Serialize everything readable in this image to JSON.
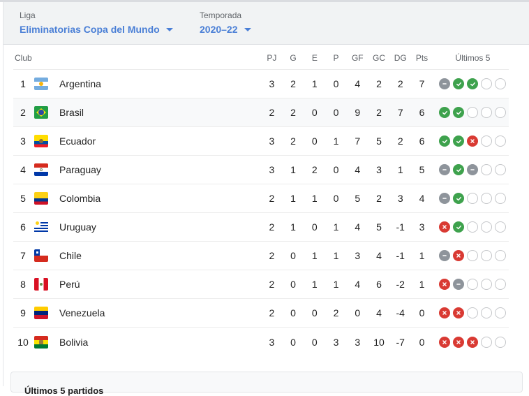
{
  "filters": {
    "league": {
      "label": "Liga",
      "value": "Eliminatorias Copa del Mundo"
    },
    "season": {
      "label": "Temporada",
      "value": "2020–22"
    }
  },
  "table": {
    "headers": {
      "club": "Club",
      "pj": "PJ",
      "g": "G",
      "e": "E",
      "p": "P",
      "gf": "GF",
      "gc": "GC",
      "dg": "DG",
      "pts": "Pts",
      "last5": "Últimos 5"
    },
    "rows": [
      {
        "pos": "1",
        "club": "Argentina",
        "flag": "argentina",
        "pj": "3",
        "g": "2",
        "e": "1",
        "p": "0",
        "gf": "4",
        "gc": "2",
        "dg": "2",
        "pts": "7",
        "last5": [
          "draw",
          "win",
          "win",
          "empty",
          "empty"
        ]
      },
      {
        "pos": "2",
        "club": "Brasil",
        "flag": "brasil",
        "pj": "2",
        "g": "2",
        "e": "0",
        "p": "0",
        "gf": "9",
        "gc": "2",
        "dg": "7",
        "pts": "6",
        "last5": [
          "win",
          "win",
          "empty",
          "empty",
          "empty"
        ]
      },
      {
        "pos": "3",
        "club": "Ecuador",
        "flag": "ecuador",
        "pj": "3",
        "g": "2",
        "e": "0",
        "p": "1",
        "gf": "7",
        "gc": "5",
        "dg": "2",
        "pts": "6",
        "last5": [
          "win",
          "win",
          "loss",
          "empty",
          "empty"
        ]
      },
      {
        "pos": "4",
        "club": "Paraguay",
        "flag": "paraguay",
        "pj": "3",
        "g": "1",
        "e": "2",
        "p": "0",
        "gf": "4",
        "gc": "3",
        "dg": "1",
        "pts": "5",
        "last5": [
          "draw",
          "win",
          "draw",
          "empty",
          "empty"
        ]
      },
      {
        "pos": "5",
        "club": "Colombia",
        "flag": "colombia",
        "pj": "2",
        "g": "1",
        "e": "1",
        "p": "0",
        "gf": "5",
        "gc": "2",
        "dg": "3",
        "pts": "4",
        "last5": [
          "draw",
          "win",
          "empty",
          "empty",
          "empty"
        ]
      },
      {
        "pos": "6",
        "club": "Uruguay",
        "flag": "uruguay",
        "pj": "2",
        "g": "1",
        "e": "0",
        "p": "1",
        "gf": "4",
        "gc": "5",
        "dg": "-1",
        "pts": "3",
        "last5": [
          "loss",
          "win",
          "empty",
          "empty",
          "empty"
        ]
      },
      {
        "pos": "7",
        "club": "Chile",
        "flag": "chile",
        "pj": "2",
        "g": "0",
        "e": "1",
        "p": "1",
        "gf": "3",
        "gc": "4",
        "dg": "-1",
        "pts": "1",
        "last5": [
          "draw",
          "loss",
          "empty",
          "empty",
          "empty"
        ]
      },
      {
        "pos": "8",
        "club": "Perú",
        "flag": "peru",
        "pj": "2",
        "g": "0",
        "e": "1",
        "p": "1",
        "gf": "4",
        "gc": "6",
        "dg": "-2",
        "pts": "1",
        "last5": [
          "loss",
          "draw",
          "empty",
          "empty",
          "empty"
        ]
      },
      {
        "pos": "9",
        "club": "Venezuela",
        "flag": "venezuela",
        "pj": "2",
        "g": "0",
        "e": "0",
        "p": "2",
        "gf": "0",
        "gc": "4",
        "dg": "-4",
        "pts": "0",
        "last5": [
          "loss",
          "loss",
          "empty",
          "empty",
          "empty"
        ]
      },
      {
        "pos": "10",
        "club": "Bolivia",
        "flag": "bolivia",
        "pj": "3",
        "g": "0",
        "e": "0",
        "p": "3",
        "gf": "3",
        "gc": "10",
        "dg": "-7",
        "pts": "0",
        "last5": [
          "loss",
          "loss",
          "loss",
          "empty",
          "empty"
        ]
      }
    ]
  },
  "bottom_section": {
    "title": "Últimos 5 partidos"
  },
  "colors": {
    "accent": "#4a7fd6",
    "win": "#3ea24d",
    "loss": "#d93a33",
    "draw": "#8e949b",
    "empty_border": "#c4c6c9"
  }
}
